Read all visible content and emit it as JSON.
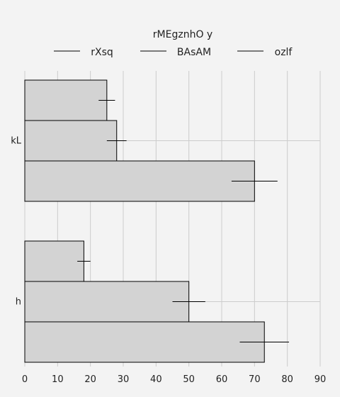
{
  "chart_data": {
    "type": "bar",
    "orientation": "horizontal",
    "categories": [
      "kL",
      "h"
    ],
    "series": [
      {
        "name": "rXsq",
        "values": [
          25,
          18
        ],
        "errors": [
          2.5,
          2
        ]
      },
      {
        "name": "BAsAM",
        "values": [
          28,
          50
        ],
        "errors": [
          3,
          5
        ]
      },
      {
        "name": "ozlf",
        "values": [
          70,
          73
        ],
        "errors": [
          7,
          7.5
        ]
      }
    ],
    "legend_title": "rMEgznhO y",
    "xlim": [
      0,
      90
    ],
    "xticks": [
      0,
      10,
      20,
      30,
      40,
      50,
      60,
      70,
      80,
      90
    ],
    "xlabel": "",
    "ylabel": "",
    "grid": true,
    "legend_position": "top-center",
    "colors": {
      "background": "#f3f3f3",
      "bar_fill": "#d3d3d3",
      "bar_edge": "#000000",
      "grid": "#cccccc",
      "error": "#000000"
    }
  }
}
